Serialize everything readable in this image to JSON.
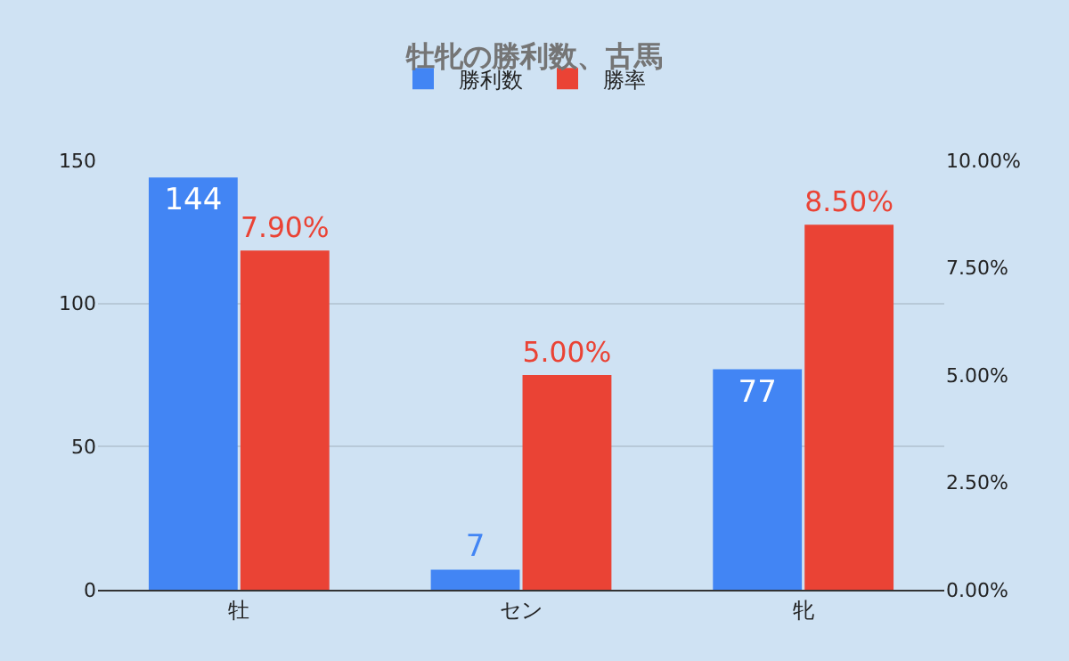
{
  "chart_data": {
    "type": "bar",
    "title": "牡牝の勝利数、古馬",
    "categories": [
      "牡",
      "セン",
      "牝"
    ],
    "series": [
      {
        "name": "勝利数",
        "color": "#4285f4",
        "values": [
          144,
          7,
          77
        ],
        "value_labels": [
          "144",
          "7",
          "77"
        ]
      },
      {
        "name": "勝率",
        "color": "#ea4335",
        "values": [
          7.9,
          5.0,
          8.5
        ],
        "axis": "y2",
        "value_labels": [
          "7.90%",
          "5.00%",
          "8.50%"
        ]
      }
    ],
    "ylim": [
      0,
      150
    ],
    "yticks": [
      0,
      50,
      100,
      150
    ],
    "y2lim": [
      0,
      10
    ],
    "y2ticks": [
      {
        "value": 0,
        "label": "0.00%"
      },
      {
        "value": 2.5,
        "label": "2.50%"
      },
      {
        "value": 5,
        "label": "5.00%"
      },
      {
        "value": 7.5,
        "label": "7.50%"
      },
      {
        "value": 10,
        "label": "10.00%"
      }
    ],
    "grid": "y",
    "legend": "top"
  }
}
